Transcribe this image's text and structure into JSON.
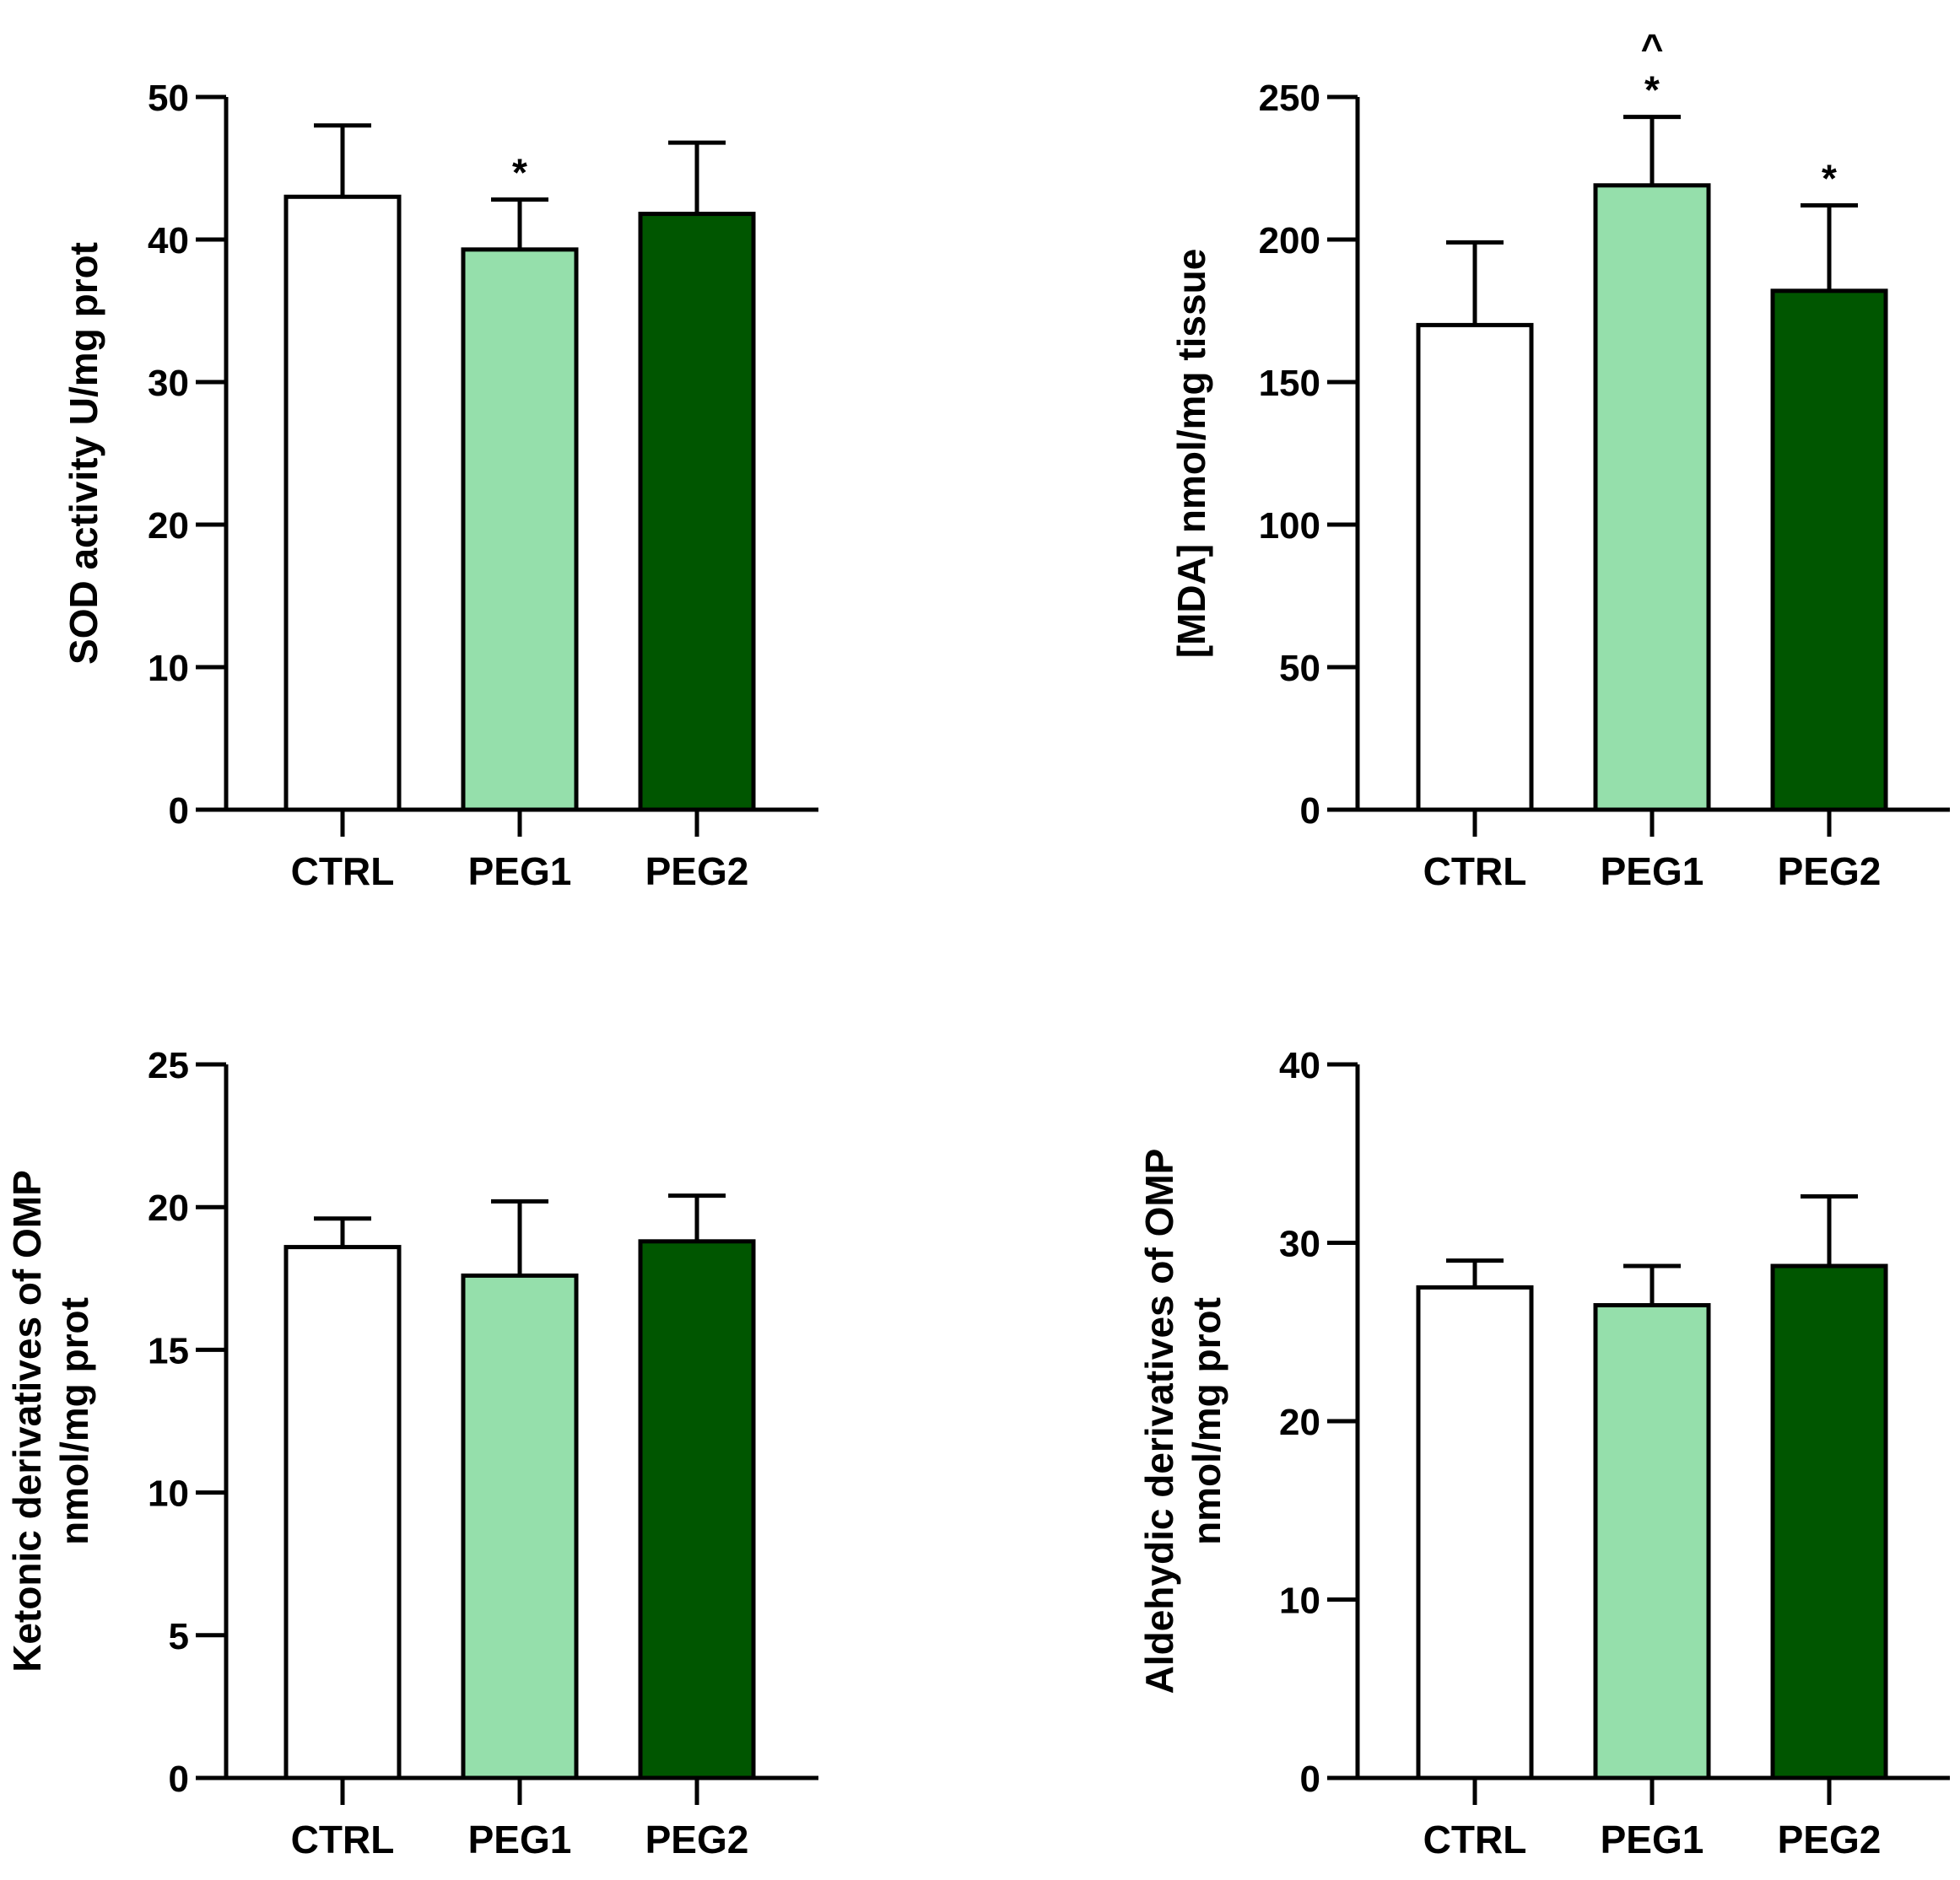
{
  "colors": {
    "ctrl": "#ffffff",
    "peg1": "#95dfab",
    "peg2": "#005600",
    "stroke": "#000000"
  },
  "chart_data": [
    {
      "type": "bar",
      "categories": [
        "CTRL",
        "PEG1",
        "PEG2"
      ],
      "values": [
        43,
        39.3,
        41.8
      ],
      "errors": [
        5,
        3.5,
        5
      ],
      "ylabel": [
        "SOD activity U/mg prot"
      ],
      "ylim": [
        0,
        50
      ],
      "yticks": [
        0,
        10,
        20,
        30,
        40,
        50
      ],
      "annotations": [
        [],
        [
          "*"
        ],
        []
      ]
    },
    {
      "type": "bar",
      "categories": [
        "CTRL",
        "PEG1",
        "PEG2"
      ],
      "values": [
        170,
        219,
        182
      ],
      "errors": [
        29,
        24,
        30
      ],
      "ylabel": [
        "[MDA] nmol/mg tissue"
      ],
      "ylim": [
        0,
        250
      ],
      "yticks": [
        0,
        50,
        100,
        150,
        200,
        250
      ],
      "annotations": [
        [],
        [
          "*",
          "^"
        ],
        [
          "*"
        ]
      ]
    },
    {
      "type": "bar",
      "categories": [
        "CTRL",
        "PEG1",
        "PEG2"
      ],
      "values": [
        18.6,
        17.6,
        18.8
      ],
      "errors": [
        1,
        2.6,
        1.6
      ],
      "ylabel": [
        "Ketonic derivatives of OMP",
        "nmol/mg prot"
      ],
      "ylim": [
        0,
        25
      ],
      "yticks": [
        0,
        5,
        10,
        15,
        20,
        25
      ],
      "annotations": [
        [],
        [],
        []
      ]
    },
    {
      "type": "bar",
      "categories": [
        "CTRL",
        "PEG1",
        "PEG2"
      ],
      "values": [
        27.5,
        26.5,
        28.7
      ],
      "errors": [
        1.5,
        2.2,
        3.9
      ],
      "ylabel": [
        "Aldehydic derivatives of OMP",
        "nmol/mg prot"
      ],
      "ylim": [
        0,
        40
      ],
      "yticks": [
        0,
        10,
        20,
        30,
        40
      ],
      "annotations": [
        [],
        [],
        []
      ]
    }
  ]
}
